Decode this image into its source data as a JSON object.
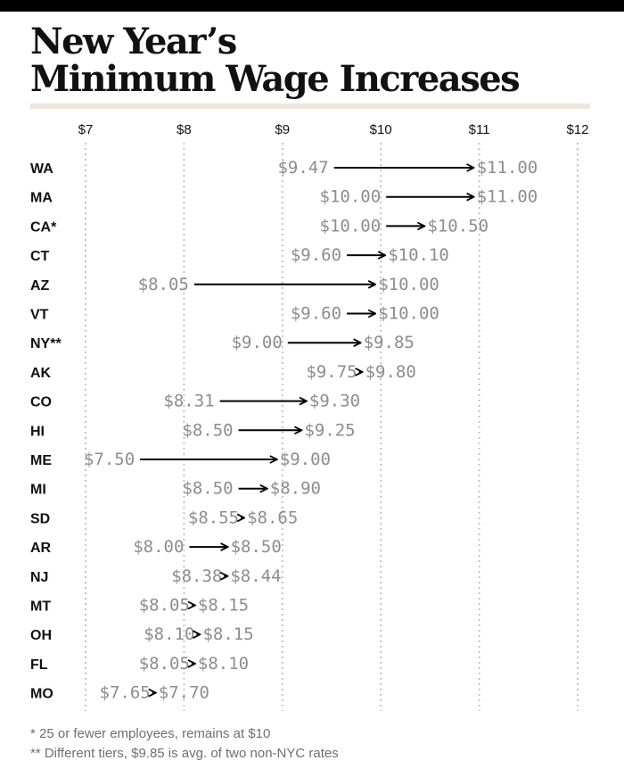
{
  "title_line1": "New Year’s",
  "title_line2": "Minimum Wage Increases",
  "footnotes": [
    "* 25 or fewer employees, remains at $10",
    "** Different tiers, $9.85 is avg. of two non-NYC rates"
  ],
  "colors": {
    "arrow": "#000000",
    "value_text": "#8d8d8d",
    "state_text": "#111111",
    "gridline": "#c4c4c4",
    "title_rule": "#ece6d9"
  },
  "chart_data": {
    "type": "dumbbell-arrow",
    "title": "New Year’s Minimum Wage Increases",
    "xlabel": "",
    "ylabel": "",
    "xlim": [
      7,
      12
    ],
    "x_ticks": [
      "$7",
      "$8",
      "$9",
      "$10",
      "$11",
      "$12"
    ],
    "x_tick_values": [
      7,
      8,
      9,
      10,
      11,
      12
    ],
    "grid": "vertical dotted",
    "rows": [
      {
        "state": "WA",
        "from": 9.47,
        "to": 11.0,
        "from_label": "$9.47",
        "to_label": "$11.00"
      },
      {
        "state": "MA",
        "from": 10.0,
        "to": 11.0,
        "from_label": "$10.00",
        "to_label": "$11.00"
      },
      {
        "state": "CA*",
        "from": 10.0,
        "to": 10.5,
        "from_label": "$10.00",
        "to_label": "$10.50"
      },
      {
        "state": "CT",
        "from": 9.6,
        "to": 10.1,
        "from_label": "$9.60",
        "to_label": "$10.10"
      },
      {
        "state": "AZ",
        "from": 8.05,
        "to": 10.0,
        "from_label": "$8.05",
        "to_label": "$10.00"
      },
      {
        "state": "VT",
        "from": 9.6,
        "to": 10.0,
        "from_label": "$9.60",
        "to_label": "$10.00"
      },
      {
        "state": "NY**",
        "from": 9.0,
        "to": 9.85,
        "from_label": "$9.00",
        "to_label": "$9.85"
      },
      {
        "state": "AK",
        "from": 9.75,
        "to": 9.8,
        "from_label": "$9.75",
        "to_label": "$9.80"
      },
      {
        "state": "CO",
        "from": 8.31,
        "to": 9.3,
        "from_label": "$8.31",
        "to_label": "$9.30"
      },
      {
        "state": "HI",
        "from": 8.5,
        "to": 9.25,
        "from_label": "$8.50",
        "to_label": "$9.25"
      },
      {
        "state": "ME",
        "from": 7.5,
        "to": 9.0,
        "from_label": "$7.50",
        "to_label": "$9.00"
      },
      {
        "state": "MI",
        "from": 8.5,
        "to": 8.9,
        "from_label": "$8.50",
        "to_label": "$8.90"
      },
      {
        "state": "SD",
        "from": 8.55,
        "to": 8.65,
        "from_label": "$8.55",
        "to_label": "$8.65"
      },
      {
        "state": "AR",
        "from": 8.0,
        "to": 8.5,
        "from_label": "$8.00",
        "to_label": "$8.50"
      },
      {
        "state": "NJ",
        "from": 8.38,
        "to": 8.44,
        "from_label": "$8.38",
        "to_label": "$8.44"
      },
      {
        "state": "MT",
        "from": 8.05,
        "to": 8.15,
        "from_label": "$8.05",
        "to_label": "$8.15"
      },
      {
        "state": "OH",
        "from": 8.1,
        "to": 8.15,
        "from_label": "$8.10",
        "to_label": "$8.15"
      },
      {
        "state": "FL",
        "from": 8.05,
        "to": 8.1,
        "from_label": "$8.05",
        "to_label": "$8.10"
      },
      {
        "state": "MO",
        "from": 7.65,
        "to": 7.7,
        "from_label": "$7.65",
        "to_label": "$7.70"
      }
    ]
  }
}
